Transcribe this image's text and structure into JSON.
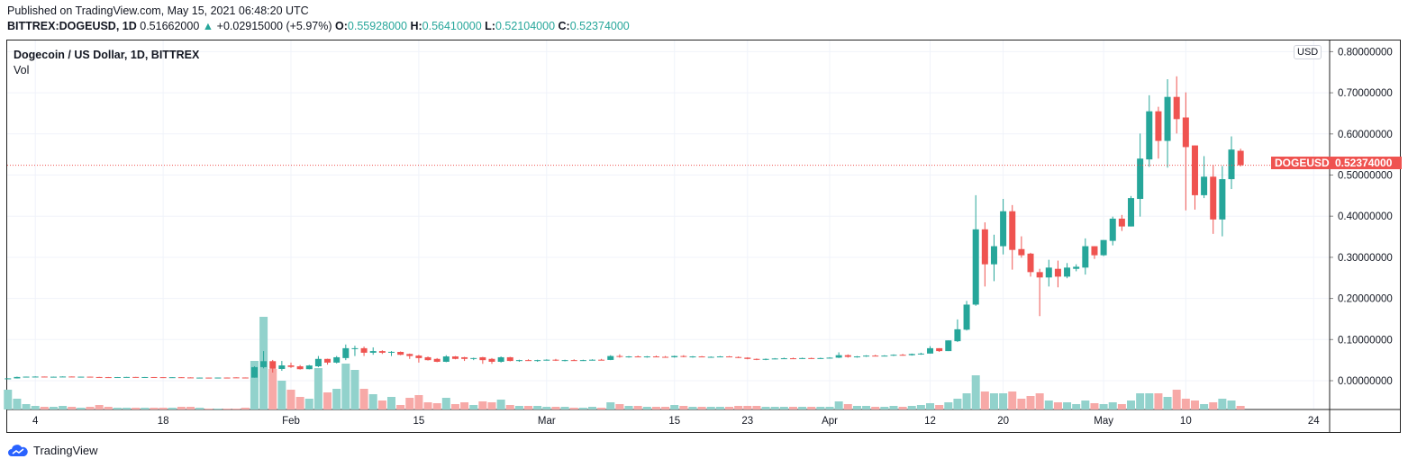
{
  "header": {
    "published": "Published on TradingView.com, May 15, 2021 06:48:20 UTC",
    "symbol": "BITTREX:DOGEUSD, 1D",
    "last": "0.51662000",
    "change": "+0.02915000 (+5.97%)",
    "o_label": "O:",
    "o": "0.55928000",
    "h_label": "H:",
    "h": "0.56410000",
    "l_label": "L:",
    "l": "0.52104000",
    "c_label": "C:",
    "c": "0.52374000"
  },
  "legend": {
    "title": "Dogecoin / US Dollar, 1D, BITTREX",
    "vol": "Vol"
  },
  "currency_button": "USD",
  "price_tag": {
    "symbol": "DOGEUSD",
    "value": "0.52374000",
    "price": 0.52374
  },
  "footer": {
    "brand": "TradingView"
  },
  "colors": {
    "up": "#26a69a",
    "down": "#ef5350",
    "vol_up": "#92d2cc",
    "vol_down": "#f7a9a7",
    "grid": "#f0f3fa"
  },
  "chart_data": {
    "type": "candlestick",
    "start_date": "2021-01-01",
    "ylim": [
      -0.07,
      0.83
    ],
    "y_ticks": [
      {
        "v": 0.8,
        "label": "0.80000000"
      },
      {
        "v": 0.7,
        "label": "0.70000000"
      },
      {
        "v": 0.6,
        "label": "0.60000000"
      },
      {
        "v": 0.5,
        "label": "0.50000000"
      },
      {
        "v": 0.4,
        "label": "0.40000000"
      },
      {
        "v": 0.3,
        "label": "0.30000000"
      },
      {
        "v": 0.2,
        "label": "0.20000000"
      },
      {
        "v": 0.1,
        "label": "0.10000000"
      },
      {
        "v": 0.0,
        "label": "0.00000000"
      }
    ],
    "x_ticks": [
      {
        "day": 3,
        "label": "4"
      },
      {
        "day": 17,
        "label": "18"
      },
      {
        "day": 31,
        "label": "Feb"
      },
      {
        "day": 45,
        "label": "15"
      },
      {
        "day": 59,
        "label": "Mar"
      },
      {
        "day": 73,
        "label": "15"
      },
      {
        "day": 81,
        "label": "23"
      },
      {
        "day": 90,
        "label": "Apr"
      },
      {
        "day": 101,
        "label": "12"
      },
      {
        "day": 109,
        "label": "20"
      },
      {
        "day": 120,
        "label": "May"
      },
      {
        "day": 129,
        "label": "10"
      },
      {
        "day": 143,
        "label": "24"
      }
    ],
    "ohlcv_fields": [
      "open",
      "high",
      "low",
      "close",
      "volume_relative"
    ],
    "ohlcv": [
      [
        0.0047,
        0.0058,
        0.0046,
        0.0056,
        22
      ],
      [
        0.0056,
        0.0098,
        0.0053,
        0.009,
        12
      ],
      [
        0.009,
        0.01,
        0.0085,
        0.0098,
        6
      ],
      [
        0.0098,
        0.0106,
        0.009,
        0.01,
        4
      ],
      [
        0.01,
        0.0101,
        0.0091,
        0.0093,
        3
      ],
      [
        0.0093,
        0.0099,
        0.0089,
        0.0096,
        3
      ],
      [
        0.0096,
        0.0105,
        0.0093,
        0.0101,
        4
      ],
      [
        0.0101,
        0.0103,
        0.009,
        0.0095,
        3
      ],
      [
        0.0095,
        0.0099,
        0.0092,
        0.0097,
        2
      ],
      [
        0.0097,
        0.0098,
        0.0086,
        0.0089,
        3
      ],
      [
        0.0089,
        0.0093,
        0.0078,
        0.0086,
        5
      ],
      [
        0.0086,
        0.009,
        0.0081,
        0.0084,
        3
      ],
      [
        0.0084,
        0.0089,
        0.0082,
        0.0087,
        2
      ],
      [
        0.0087,
        0.0092,
        0.0085,
        0.009,
        2
      ],
      [
        0.009,
        0.0091,
        0.0084,
        0.0086,
        2
      ],
      [
        0.0086,
        0.009,
        0.0084,
        0.0088,
        2
      ],
      [
        0.0088,
        0.0089,
        0.0084,
        0.0085,
        2
      ],
      [
        0.0085,
        0.0087,
        0.0082,
        0.0083,
        2
      ],
      [
        0.0083,
        0.0086,
        0.008,
        0.0084,
        2
      ],
      [
        0.0084,
        0.0085,
        0.0078,
        0.0079,
        3
      ],
      [
        0.0079,
        0.0081,
        0.0073,
        0.0074,
        3
      ],
      [
        0.0074,
        0.0077,
        0.0069,
        0.0075,
        2
      ],
      [
        0.0075,
        0.0077,
        0.0073,
        0.0074,
        1
      ],
      [
        0.0074,
        0.0077,
        0.0072,
        0.0076,
        1
      ],
      [
        0.0076,
        0.0078,
        0.0073,
        0.0074,
        1
      ],
      [
        0.008,
        0.0082,
        0.0075,
        0.0077,
        1
      ],
      [
        0.0077,
        0.0078,
        0.0072,
        0.0074,
        2
      ],
      [
        0.0074,
        0.035,
        0.0073,
        0.033,
        54
      ],
      [
        0.033,
        0.072,
        0.03,
        0.0475,
        103
      ],
      [
        0.0475,
        0.0505,
        0.0198,
        0.029,
        45
      ],
      [
        0.0285,
        0.048,
        0.024,
        0.0372,
        32
      ],
      [
        0.0372,
        0.044,
        0.031,
        0.0335,
        22
      ],
      [
        0.035,
        0.038,
        0.027,
        0.028,
        14
      ],
      [
        0.028,
        0.0385,
        0.0275,
        0.037,
        12
      ],
      [
        0.035,
        0.06,
        0.033,
        0.053,
        46
      ],
      [
        0.053,
        0.0535,
        0.039,
        0.044,
        19
      ],
      [
        0.044,
        0.06,
        0.042,
        0.057,
        23
      ],
      [
        0.055,
        0.088,
        0.05,
        0.079,
        51
      ],
      [
        0.077,
        0.085,
        0.06,
        0.079,
        44
      ],
      [
        0.079,
        0.083,
        0.06,
        0.068,
        23
      ],
      [
        0.068,
        0.081,
        0.063,
        0.072,
        17
      ],
      [
        0.072,
        0.074,
        0.065,
        0.068,
        10
      ],
      [
        0.07,
        0.072,
        0.06,
        0.0702,
        14
      ],
      [
        0.07,
        0.071,
        0.062,
        0.063,
        5
      ],
      [
        0.065,
        0.066,
        0.053,
        0.06,
        13
      ],
      [
        0.061,
        0.063,
        0.044,
        0.055,
        16
      ],
      [
        0.057,
        0.059,
        0.049,
        0.05,
        8
      ],
      [
        0.053,
        0.055,
        0.045,
        0.046,
        7
      ],
      [
        0.046,
        0.062,
        0.045,
        0.059,
        13
      ],
      [
        0.059,
        0.06,
        0.052,
        0.053,
        6
      ],
      [
        0.057,
        0.058,
        0.048,
        0.053,
        8
      ],
      [
        0.053,
        0.056,
        0.05,
        0.055,
        5
      ],
      [
        0.057,
        0.058,
        0.041,
        0.05,
        9
      ],
      [
        0.053,
        0.055,
        0.041,
        0.046,
        8
      ],
      [
        0.046,
        0.059,
        0.044,
        0.057,
        11
      ],
      [
        0.057,
        0.058,
        0.047,
        0.048,
        5
      ],
      [
        0.048,
        0.051,
        0.046,
        0.05,
        4
      ],
      [
        0.05,
        0.052,
        0.049,
        0.0495,
        4
      ],
      [
        0.0495,
        0.051,
        0.046,
        0.05,
        4
      ],
      [
        0.05,
        0.052,
        0.049,
        0.051,
        3
      ],
      [
        0.051,
        0.053,
        0.048,
        0.049,
        3
      ],
      [
        0.049,
        0.051,
        0.047,
        0.05,
        3
      ],
      [
        0.05,
        0.052,
        0.049,
        0.0495,
        2
      ],
      [
        0.0495,
        0.051,
        0.048,
        0.05,
        2
      ],
      [
        0.05,
        0.052,
        0.049,
        0.051,
        3
      ],
      [
        0.051,
        0.053,
        0.05,
        0.0505,
        2
      ],
      [
        0.0505,
        0.062,
        0.05,
        0.06,
        8
      ],
      [
        0.06,
        0.064,
        0.056,
        0.058,
        6
      ],
      [
        0.058,
        0.06,
        0.056,
        0.059,
        4
      ],
      [
        0.059,
        0.061,
        0.057,
        0.0575,
        4
      ],
      [
        0.0575,
        0.06,
        0.056,
        0.059,
        3
      ],
      [
        0.059,
        0.061,
        0.057,
        0.058,
        3
      ],
      [
        0.058,
        0.06,
        0.056,
        0.057,
        3
      ],
      [
        0.057,
        0.061,
        0.056,
        0.06,
        5
      ],
      [
        0.06,
        0.062,
        0.057,
        0.058,
        4
      ],
      [
        0.058,
        0.06,
        0.056,
        0.059,
        3
      ],
      [
        0.059,
        0.06,
        0.057,
        0.0575,
        3
      ],
      [
        0.0575,
        0.059,
        0.056,
        0.058,
        3
      ],
      [
        0.058,
        0.06,
        0.057,
        0.059,
        3
      ],
      [
        0.059,
        0.06,
        0.057,
        0.0575,
        3
      ],
      [
        0.0575,
        0.059,
        0.055,
        0.056,
        4
      ],
      [
        0.056,
        0.057,
        0.052,
        0.053,
        4
      ],
      [
        0.053,
        0.054,
        0.05,
        0.051,
        4
      ],
      [
        0.051,
        0.054,
        0.05,
        0.053,
        3
      ],
      [
        0.053,
        0.055,
        0.052,
        0.054,
        3
      ],
      [
        0.054,
        0.056,
        0.053,
        0.0545,
        3
      ],
      [
        0.0545,
        0.056,
        0.053,
        0.054,
        3
      ],
      [
        0.054,
        0.056,
        0.053,
        0.055,
        3
      ],
      [
        0.055,
        0.056,
        0.053,
        0.054,
        3
      ],
      [
        0.054,
        0.056,
        0.053,
        0.055,
        3
      ],
      [
        0.055,
        0.057,
        0.054,
        0.056,
        3
      ],
      [
        0.056,
        0.069,
        0.055,
        0.062,
        9
      ],
      [
        0.062,
        0.064,
        0.056,
        0.058,
        6
      ],
      [
        0.058,
        0.06,
        0.056,
        0.059,
        4
      ],
      [
        0.059,
        0.062,
        0.058,
        0.061,
        4
      ],
      [
        0.061,
        0.063,
        0.059,
        0.06,
        3
      ],
      [
        0.06,
        0.062,
        0.059,
        0.061,
        3
      ],
      [
        0.061,
        0.064,
        0.06,
        0.063,
        4
      ],
      [
        0.063,
        0.065,
        0.061,
        0.062,
        3
      ],
      [
        0.062,
        0.066,
        0.061,
        0.065,
        4
      ],
      [
        0.065,
        0.068,
        0.063,
        0.066,
        5
      ],
      [
        0.066,
        0.084,
        0.066,
        0.079,
        7
      ],
      [
        0.079,
        0.079,
        0.07,
        0.072,
        5
      ],
      [
        0.072,
        0.098,
        0.072,
        0.098,
        8
      ],
      [
        0.096,
        0.149,
        0.094,
        0.125,
        12
      ],
      [
        0.124,
        0.194,
        0.122,
        0.185,
        18
      ],
      [
        0.185,
        0.451,
        0.182,
        0.368,
        38
      ],
      [
        0.368,
        0.385,
        0.229,
        0.283,
        20
      ],
      [
        0.283,
        0.355,
        0.242,
        0.327,
        18
      ],
      [
        0.327,
        0.442,
        0.307,
        0.412,
        18
      ],
      [
        0.412,
        0.427,
        0.27,
        0.318,
        20
      ],
      [
        0.32,
        0.351,
        0.299,
        0.305,
        12
      ],
      [
        0.309,
        0.311,
        0.253,
        0.264,
        15
      ],
      [
        0.264,
        0.272,
        0.157,
        0.251,
        18
      ],
      [
        0.251,
        0.294,
        0.229,
        0.275,
        10
      ],
      [
        0.272,
        0.292,
        0.227,
        0.253,
        8
      ],
      [
        0.253,
        0.286,
        0.249,
        0.275,
        8
      ],
      [
        0.272,
        0.283,
        0.266,
        0.277,
        6
      ],
      [
        0.275,
        0.346,
        0.258,
        0.327,
        10
      ],
      [
        0.327,
        0.327,
        0.296,
        0.305,
        7
      ],
      [
        0.305,
        0.342,
        0.303,
        0.342,
        6
      ],
      [
        0.34,
        0.399,
        0.329,
        0.394,
        8
      ],
      [
        0.394,
        0.403,
        0.364,
        0.375,
        6
      ],
      [
        0.375,
        0.449,
        0.375,
        0.444,
        10
      ],
      [
        0.442,
        0.601,
        0.399,
        0.54,
        18
      ],
      [
        0.538,
        0.694,
        0.52,
        0.655,
        18
      ],
      [
        0.655,
        0.666,
        0.54,
        0.583,
        18
      ],
      [
        0.583,
        0.733,
        0.518,
        0.69,
        14
      ],
      [
        0.69,
        0.74,
        0.601,
        0.636,
        22
      ],
      [
        0.64,
        0.701,
        0.414,
        0.568,
        12
      ],
      [
        0.572,
        0.572,
        0.416,
        0.451,
        10
      ],
      [
        0.451,
        0.546,
        0.444,
        0.496,
        6
      ],
      [
        0.496,
        0.525,
        0.357,
        0.392,
        8
      ],
      [
        0.392,
        0.522,
        0.351,
        0.49,
        12
      ],
      [
        0.49,
        0.594,
        0.466,
        0.562,
        10
      ],
      [
        0.559,
        0.564,
        0.521,
        0.524,
        4
      ]
    ]
  }
}
